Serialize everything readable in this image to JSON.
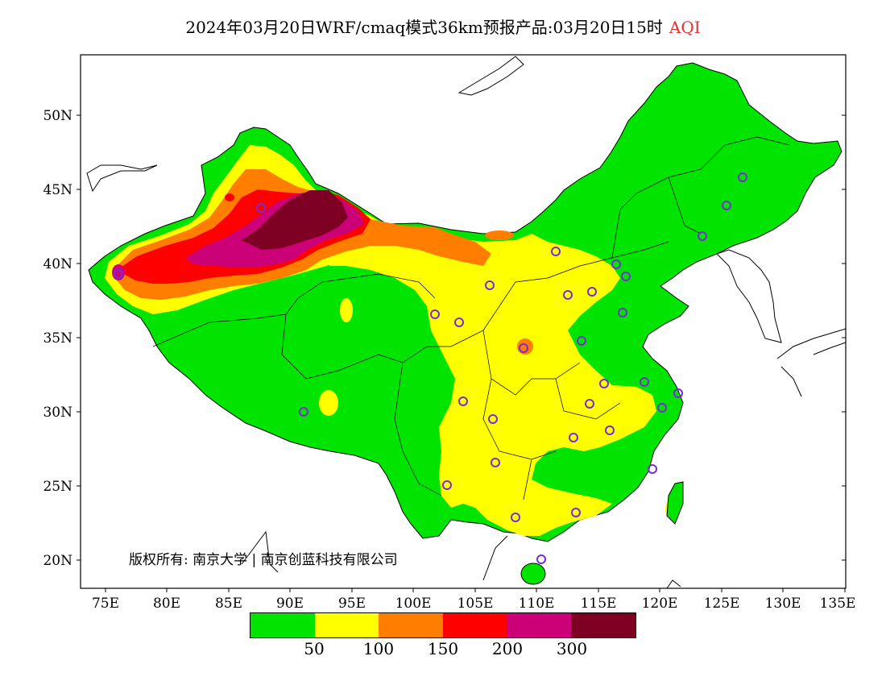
{
  "title": {
    "main": "2024年03月20日WRF/cmaq模式36km预报产品:03月20日15时",
    "variable": "AQI"
  },
  "map": {
    "lat_ticks": [
      "50N",
      "45N",
      "40N",
      "35N",
      "30N",
      "25N",
      "20N"
    ],
    "lon_ticks": [
      "75E",
      "80E",
      "85E",
      "90E",
      "95E",
      "100E",
      "105E",
      "110E",
      "115E",
      "120E",
      "125E",
      "130E",
      "135E"
    ]
  },
  "legend": {
    "colors": [
      "#00e400",
      "#ffff00",
      "#ff7e00",
      "#ff0000",
      "#cc0077",
      "#7e0023"
    ],
    "labels": [
      "50",
      "100",
      "150",
      "200",
      "300"
    ]
  },
  "copyright": "版权所有: 南京大学 | 南京创蓝科技有限公司",
  "colors": {
    "good": "#00e400",
    "moderate": "#ffff00",
    "usg": "#ff7e00",
    "unhealthy": "#ff0000",
    "very_unhealthy": "#cc0077",
    "hazardous": "#7e0023",
    "station_marker": "#7a2bd6",
    "title_accent": "#e03030"
  }
}
